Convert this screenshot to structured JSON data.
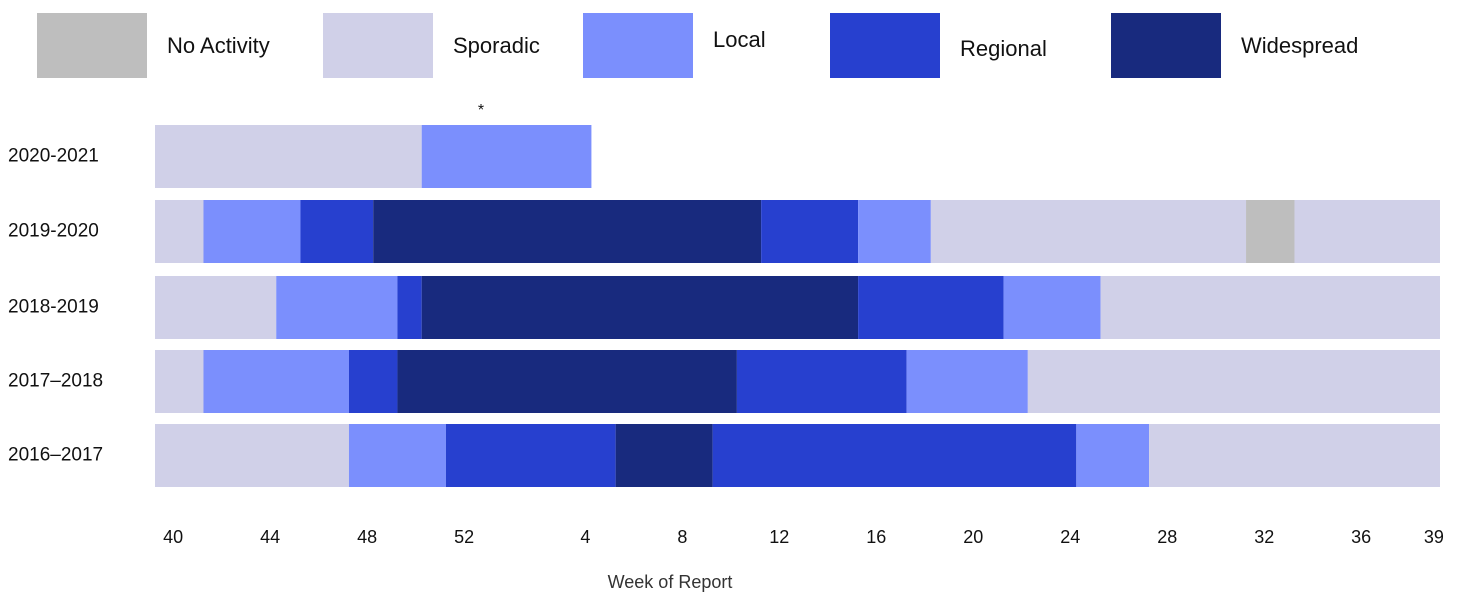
{
  "chart_data": {
    "type": "timeline",
    "levels": [
      {
        "name": "No Activity",
        "color": "#bebebe"
      },
      {
        "name": "Sporadic",
        "color": "#d0d0e8"
      },
      {
        "name": "Local",
        "color": "#7b8ffd"
      },
      {
        "name": "Regional",
        "color": "#2740cf"
      },
      {
        "name": "Widespread",
        "color": "#182a7e"
      }
    ],
    "categories": [
      "2020-2021",
      "2019-2020",
      "2018-2019",
      "2017–2018",
      "2016–2017"
    ],
    "segments": [
      [
        {
          "level": "Sporadic",
          "weeks": 11
        },
        {
          "level": "Local",
          "weeks": 7
        }
      ],
      [
        {
          "level": "Sporadic",
          "weeks": 2
        },
        {
          "level": "Local",
          "weeks": 4
        },
        {
          "level": "Regional",
          "weeks": 3
        },
        {
          "level": "Widespread",
          "weeks": 16
        },
        {
          "level": "Regional",
          "weeks": 4
        },
        {
          "level": "Local",
          "weeks": 3
        },
        {
          "level": "Sporadic",
          "weeks": 13
        },
        {
          "level": "No Activity",
          "weeks": 2
        },
        {
          "level": "Sporadic",
          "weeks": 6
        }
      ],
      [
        {
          "level": "Sporadic",
          "weeks": 5
        },
        {
          "level": "Local",
          "weeks": 5
        },
        {
          "level": "Regional",
          "weeks": 1
        },
        {
          "level": "Widespread",
          "weeks": 18
        },
        {
          "level": "Regional",
          "weeks": 6
        },
        {
          "level": "Local",
          "weeks": 4
        },
        {
          "level": "Sporadic",
          "weeks": 14
        }
      ],
      [
        {
          "level": "Sporadic",
          "weeks": 2
        },
        {
          "level": "Local",
          "weeks": 6
        },
        {
          "level": "Regional",
          "weeks": 2
        },
        {
          "level": "Widespread",
          "weeks": 14
        },
        {
          "level": "Regional",
          "weeks": 7
        },
        {
          "level": "Local",
          "weeks": 5
        },
        {
          "level": "Sporadic",
          "weeks": 17
        }
      ],
      [
        {
          "level": "Sporadic",
          "weeks": 8
        },
        {
          "level": "Local",
          "weeks": 4
        },
        {
          "level": "Regional",
          "weeks": 7
        },
        {
          "level": "Widespread",
          "weeks": 4
        },
        {
          "level": "Regional",
          "weeks": 15
        },
        {
          "level": "Local",
          "weeks": 3
        },
        {
          "level": "Sporadic",
          "weeks": 12
        }
      ]
    ],
    "annotation": "*",
    "xlabel": "Week of Report",
    "xlim": [
      -0.75,
      52.25
    ],
    "xticks": [
      {
        "value": 0,
        "label": "40"
      },
      {
        "value": 4,
        "label": "44"
      },
      {
        "value": 8,
        "label": "48"
      },
      {
        "value": 12,
        "label": "52"
      },
      {
        "value": 17,
        "label": "4"
      },
      {
        "value": 21,
        "label": "8"
      },
      {
        "value": 25,
        "label": "12"
      },
      {
        "value": 29,
        "label": "16"
      },
      {
        "value": 33,
        "label": "20"
      },
      {
        "value": 37,
        "label": "24"
      },
      {
        "value": 41,
        "label": "28"
      },
      {
        "value": 45,
        "label": "32"
      },
      {
        "value": 49,
        "label": "36"
      },
      {
        "value": 52,
        "label": "39"
      }
    ]
  }
}
